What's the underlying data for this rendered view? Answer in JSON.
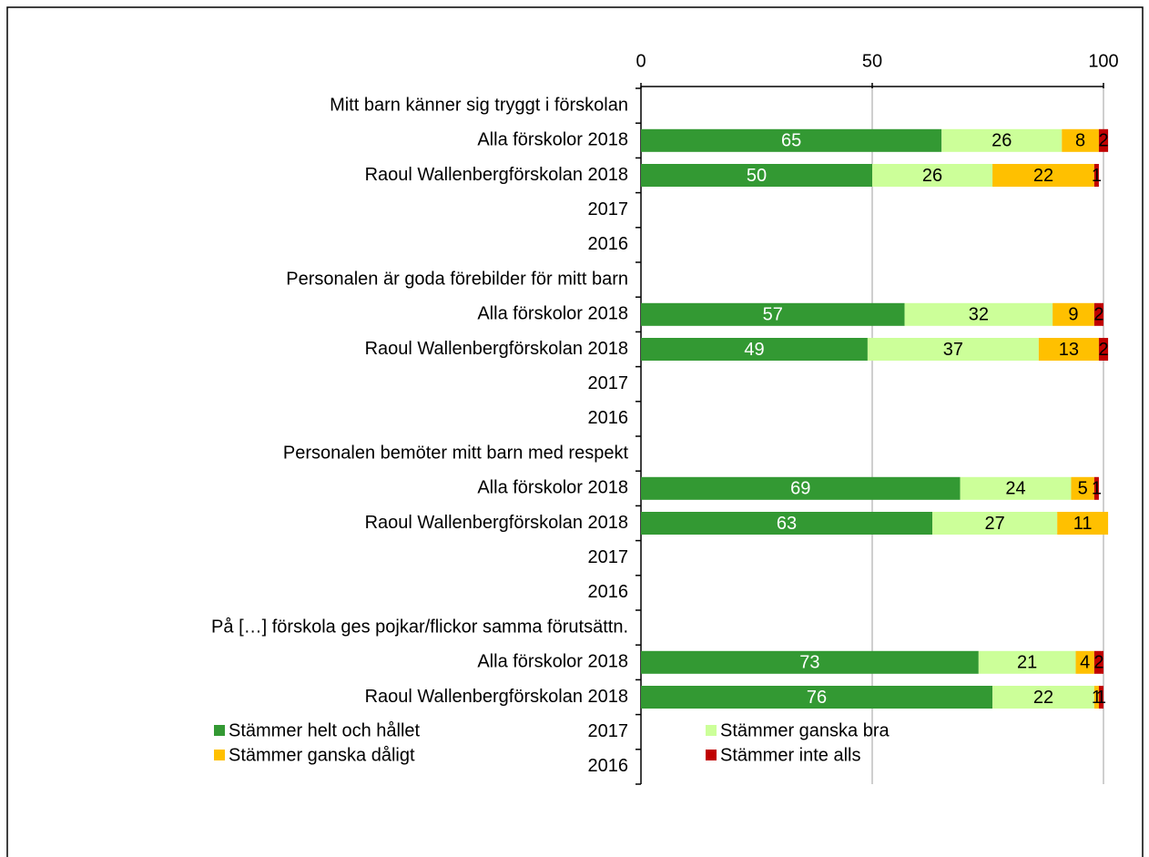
{
  "chart_data": {
    "type": "stacked_barh",
    "categories": [
      "Mitt barn känner sig tryggt i förskolan",
      "Alla förskolor 2018",
      "Raoul Wallenbergförskolan 2018",
      "2017",
      "2016",
      "Personalen är goda förebilder för mitt barn",
      "Alla förskolor 2018",
      "Raoul Wallenbergförskolan 2018",
      "2017",
      "2016",
      "Personalen bemöter mitt barn med respekt",
      "Alla förskolor 2018",
      "Raoul Wallenbergförskolan 2018",
      "2017",
      "2016",
      "På […] förskola ges pojkar/flickor samma förutsättn.",
      "Alla förskolor 2018",
      "Raoul Wallenbergförskolan 2018",
      "2017",
      "2016"
    ],
    "series": [
      {
        "name": "Stämmer helt och hållet",
        "color": "#339933",
        "values": [
          null,
          65,
          50,
          null,
          null,
          null,
          57,
          49,
          null,
          null,
          null,
          69,
          63,
          null,
          null,
          null,
          73,
          76,
          null,
          null
        ]
      },
      {
        "name": "Stämmer ganska bra",
        "color": "#ccff99",
        "values": [
          null,
          26,
          26,
          null,
          null,
          null,
          32,
          37,
          null,
          null,
          null,
          24,
          27,
          null,
          null,
          null,
          21,
          22,
          null,
          null
        ]
      },
      {
        "name": "Stämmer ganska dåligt",
        "color": "#ffc000",
        "values": [
          null,
          8,
          22,
          null,
          null,
          null,
          9,
          13,
          null,
          null,
          null,
          5,
          11,
          null,
          null,
          null,
          4,
          1,
          null,
          null
        ]
      },
      {
        "name": "Stämmer inte alls",
        "color": "#c00000",
        "values": [
          null,
          2,
          1,
          null,
          null,
          null,
          2,
          2,
          null,
          null,
          null,
          1,
          null,
          null,
          null,
          null,
          2,
          1,
          null,
          null
        ]
      }
    ],
    "xlim": [
      0,
      100
    ],
    "xticks": [
      0,
      50,
      100
    ],
    "grid": true,
    "legend": "bottom"
  }
}
